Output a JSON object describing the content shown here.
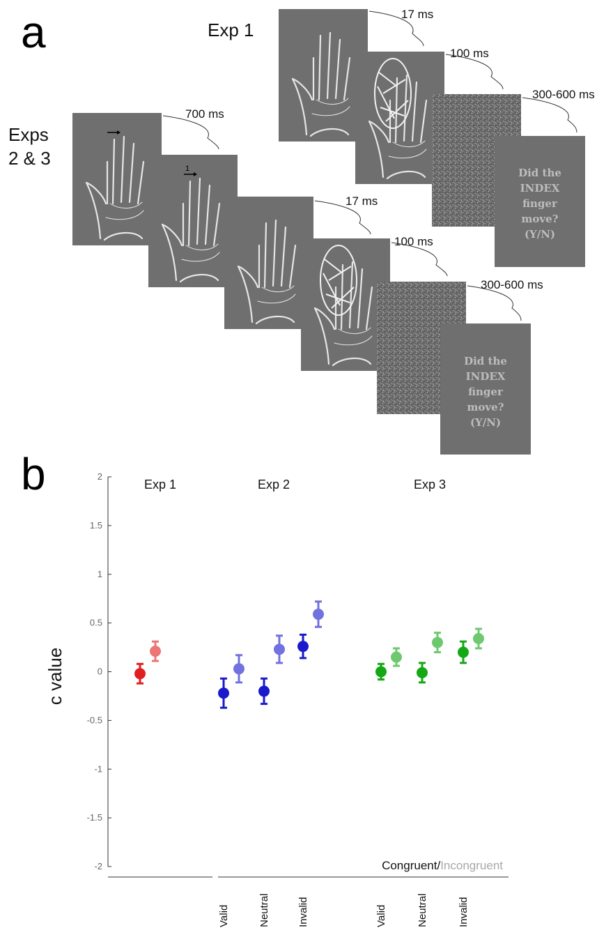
{
  "panel_a": {
    "letter": "a",
    "exp1_label": "Exp 1",
    "exps23_label_line1": "Exps",
    "exps23_label_line2": "2 & 3",
    "exp1_timings": [
      "17 ms",
      "100 ms",
      "300-600 ms"
    ],
    "exps23_timings": [
      "700 ms",
      "17 ms",
      "100 ms",
      "300-600 ms"
    ],
    "cue_number": "1",
    "question_lines": [
      "Did the",
      "INDEX",
      "finger",
      "move?",
      "(Y/N)"
    ]
  },
  "panel_b": {
    "letter": "b",
    "legend_congruent": "Congruent",
    "legend_slash": "/",
    "legend_incongruent": "Incongruent"
  },
  "chart_data": {
    "type": "scatter",
    "ylabel": "c value",
    "ylim": [
      -2,
      2
    ],
    "yticks": [
      "2",
      "1.5",
      "1",
      "0.5",
      "0",
      "-0.5",
      "-1",
      "-1.5",
      "-2"
    ],
    "ytick_values": [
      2,
      1.5,
      1,
      0.5,
      0,
      -0.5,
      -1,
      -1.5,
      -2
    ],
    "groups": [
      {
        "title": "Exp 1",
        "color": "#e02020",
        "conditions": [
          {
            "label": "",
            "congruent": {
              "mean": -0.02,
              "err": 0.1
            },
            "incongruent": {
              "mean": 0.21,
              "err": 0.1
            }
          }
        ]
      },
      {
        "title": "Exp 2",
        "color": "#1a1acc",
        "conditions": [
          {
            "label": "Valid",
            "congruent": {
              "mean": -0.22,
              "err": 0.15
            },
            "incongruent": {
              "mean": 0.03,
              "err": 0.14
            }
          },
          {
            "label": "Neutral",
            "congruent": {
              "mean": -0.2,
              "err": 0.13
            },
            "incongruent": {
              "mean": 0.23,
              "err": 0.14
            }
          },
          {
            "label": "Invalid",
            "congruent": {
              "mean": 0.26,
              "err": 0.12
            },
            "incongruent": {
              "mean": 0.59,
              "err": 0.13
            }
          }
        ]
      },
      {
        "title": "Exp 3",
        "color": "#15a815",
        "conditions": [
          {
            "label": "Valid",
            "congruent": {
              "mean": 0.0,
              "err": 0.08
            },
            "incongruent": {
              "mean": 0.15,
              "err": 0.09
            }
          },
          {
            "label": "Neutral",
            "congruent": {
              "mean": -0.01,
              "err": 0.1
            },
            "incongruent": {
              "mean": 0.3,
              "err": 0.1
            }
          },
          {
            "label": "Invalid",
            "congruent": {
              "mean": 0.2,
              "err": 0.11
            },
            "incongruent": {
              "mean": 0.34,
              "err": 0.1
            }
          }
        ]
      }
    ]
  }
}
